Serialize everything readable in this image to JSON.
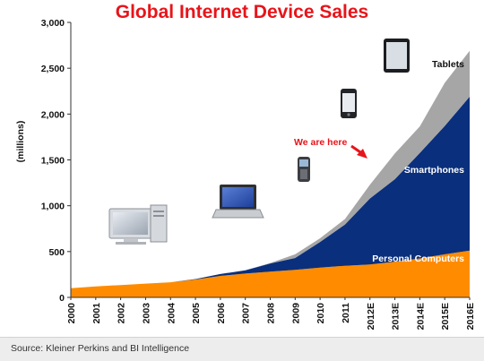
{
  "header": {
    "title": "Global Internet Device Sales"
  },
  "footer": {
    "source": "Source: Kleiner Perkins and BI Intelligence"
  },
  "colors": {
    "title": "#e8141a",
    "personal_computers": "#ff8c00",
    "smartphones": "#0a2f7c",
    "tablets": "#a6a6a6",
    "annotation": "#e8141a"
  },
  "device_icons": [
    "desktop-computer-icon",
    "laptop-icon",
    "feature-phone-icon",
    "smartphone-icon",
    "tablet-icon"
  ],
  "chart_data": {
    "type": "area",
    "stacked": true,
    "title": "Global Internet Device Sales",
    "ylabel": "(millions)",
    "xlabel": "",
    "ylim": [
      0,
      3000
    ],
    "yticks": [
      "0",
      "500",
      "1,000",
      "1,500",
      "2,000",
      "2,500",
      "3,000"
    ],
    "x": [
      "2000",
      "2001",
      "2002",
      "2003",
      "2004",
      "2005",
      "2006",
      "2007",
      "2008",
      "2009",
      "2010",
      "2011",
      "2012E",
      "2013E",
      "2014E",
      "2015E",
      "2016E"
    ],
    "series": [
      {
        "name": "Personal Computers",
        "values": [
          100,
          120,
          135,
          150,
          165,
          195,
          235,
          260,
          280,
          300,
          325,
          345,
          360,
          390,
          425,
          470,
          510
        ]
      },
      {
        "name": "Smartphones",
        "values": [
          0,
          0,
          0,
          0,
          0,
          5,
          20,
          35,
          90,
          130,
          280,
          450,
          720,
          900,
          1150,
          1400,
          1680
        ]
      },
      {
        "name": "Tablets",
        "values": [
          0,
          0,
          0,
          0,
          0,
          0,
          0,
          0,
          5,
          40,
          40,
          60,
          150,
          280,
          290,
          470,
          500
        ]
      }
    ],
    "annotations": [
      {
        "text": "We are here"
      }
    ],
    "grid": false,
    "legend": "inline labels"
  }
}
